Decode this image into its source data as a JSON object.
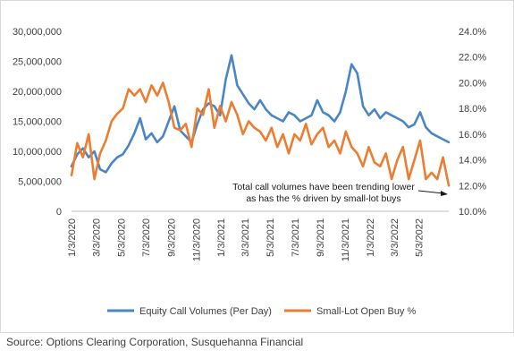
{
  "chart_data": {
    "type": "line",
    "title": "",
    "left_axis": {
      "ylim": [
        0,
        30000000
      ],
      "ticks": [
        0,
        5000000,
        10000000,
        15000000,
        20000000,
        25000000,
        30000000
      ],
      "tick_labels": [
        "0",
        "5,000,000",
        "10,000,000",
        "15,000,000",
        "20,000,000",
        "25,000,000",
        "30,000,000"
      ]
    },
    "right_axis": {
      "ylim": [
        10.0,
        24.0
      ],
      "ticks": [
        10,
        12,
        14,
        16,
        18,
        20,
        22,
        24
      ],
      "tick_labels": [
        "10.0%",
        "12.0%",
        "14.0%",
        "16.0%",
        "18.0%",
        "20.0%",
        "22.0%",
        "24.0%"
      ]
    },
    "x_axis": {
      "start": "2020-01-03",
      "end": "2022-07-15",
      "tick_dates": [
        "2020-01-03",
        "2020-03-03",
        "2020-05-03",
        "2020-07-03",
        "2020-09-03",
        "2020-11-03",
        "2021-01-03",
        "2021-03-03",
        "2021-05-03",
        "2021-07-03",
        "2021-09-03",
        "2021-11-03",
        "2022-01-03",
        "2022-03-03",
        "2022-05-03"
      ],
      "tick_labels": [
        "1/3/2020",
        "3/3/2020",
        "5/3/2020",
        "7/3/2020",
        "9/3/2020",
        "11/3/2020",
        "1/3/2021",
        "3/3/2021",
        "5/3/2021",
        "7/3/2021",
        "9/3/2021",
        "11/3/2021",
        "1/3/2022",
        "3/3/2022",
        "5/3/2022"
      ]
    },
    "series": [
      {
        "name": "Equity Call Volumes (Per Day)",
        "axis": "left",
        "color": "#4a86c5",
        "x": [
          "2020-01-03",
          "2020-01-17",
          "2020-01-31",
          "2020-02-14",
          "2020-02-28",
          "2020-03-13",
          "2020-03-27",
          "2020-04-10",
          "2020-04-24",
          "2020-05-08",
          "2020-05-22",
          "2020-06-05",
          "2020-06-19",
          "2020-07-03",
          "2020-07-17",
          "2020-07-31",
          "2020-08-14",
          "2020-08-28",
          "2020-09-11",
          "2020-09-25",
          "2020-10-09",
          "2020-10-23",
          "2020-11-06",
          "2020-11-20",
          "2020-12-04",
          "2020-12-18",
          "2021-01-01",
          "2021-01-15",
          "2021-01-29",
          "2021-02-12",
          "2021-02-26",
          "2021-03-12",
          "2021-03-26",
          "2021-04-09",
          "2021-04-23",
          "2021-05-07",
          "2021-05-21",
          "2021-06-04",
          "2021-06-18",
          "2021-07-02",
          "2021-07-16",
          "2021-07-30",
          "2021-08-13",
          "2021-08-27",
          "2021-09-10",
          "2021-09-24",
          "2021-10-08",
          "2021-10-22",
          "2021-11-05",
          "2021-11-19",
          "2021-12-03",
          "2021-12-17",
          "2021-12-31",
          "2022-01-14",
          "2022-01-28",
          "2022-02-11",
          "2022-02-25",
          "2022-03-11",
          "2022-03-25",
          "2022-04-08",
          "2022-04-22",
          "2022-05-06",
          "2022-05-20",
          "2022-06-03",
          "2022-06-17",
          "2022-07-01",
          "2022-07-15"
        ],
        "values": [
          7500000,
          9500000,
          10500000,
          9000000,
          10000000,
          7000000,
          6500000,
          8000000,
          9000000,
          9500000,
          11000000,
          13000000,
          15500000,
          12000000,
          13000000,
          11500000,
          12500000,
          15000000,
          17500000,
          13500000,
          12500000,
          11500000,
          14500000,
          17000000,
          18000000,
          17500000,
          16000000,
          22000000,
          26000000,
          21000000,
          19500000,
          18000000,
          17000000,
          18500000,
          17000000,
          16000000,
          15500000,
          15000000,
          16500000,
          16000000,
          15000000,
          15500000,
          16000000,
          18500000,
          16500000,
          16000000,
          15000000,
          16500000,
          20000000,
          24500000,
          23000000,
          17500000,
          16000000,
          17000000,
          15500000,
          16500000,
          16000000,
          15500000,
          15000000,
          14000000,
          14500000,
          16500000,
          14000000,
          13000000,
          12500000,
          12000000,
          11500000
        ]
      },
      {
        "name": "Small-Lot Open Buy %",
        "axis": "right",
        "color": "#ed7d31",
        "x": [
          "2020-01-03",
          "2020-01-17",
          "2020-01-31",
          "2020-02-14",
          "2020-02-28",
          "2020-03-13",
          "2020-03-27",
          "2020-04-10",
          "2020-04-24",
          "2020-05-08",
          "2020-05-22",
          "2020-06-05",
          "2020-06-19",
          "2020-07-03",
          "2020-07-17",
          "2020-07-31",
          "2020-08-14",
          "2020-08-28",
          "2020-09-11",
          "2020-09-25",
          "2020-10-09",
          "2020-10-23",
          "2020-11-06",
          "2020-11-20",
          "2020-12-04",
          "2020-12-18",
          "2021-01-01",
          "2021-01-15",
          "2021-01-29",
          "2021-02-12",
          "2021-02-26",
          "2021-03-12",
          "2021-03-26",
          "2021-04-09",
          "2021-04-23",
          "2021-05-07",
          "2021-05-21",
          "2021-06-04",
          "2021-06-18",
          "2021-07-02",
          "2021-07-16",
          "2021-07-30",
          "2021-08-13",
          "2021-08-27",
          "2021-09-10",
          "2021-09-24",
          "2021-10-08",
          "2021-10-22",
          "2021-11-05",
          "2021-11-19",
          "2021-12-03",
          "2021-12-17",
          "2021-12-31",
          "2022-01-14",
          "2022-01-28",
          "2022-02-11",
          "2022-02-25",
          "2022-03-11",
          "2022-03-25",
          "2022-04-08",
          "2022-04-22",
          "2022-05-06",
          "2022-05-20",
          "2022-06-03",
          "2022-06-17",
          "2022-07-01",
          "2022-07-15"
        ],
        "values": [
          12.8,
          15.3,
          14.2,
          16.0,
          12.5,
          14.5,
          15.5,
          17.0,
          17.6,
          18.0,
          19.5,
          19.0,
          19.5,
          18.5,
          19.8,
          19.0,
          20.0,
          18.5,
          16.5,
          16.3,
          16.8,
          15.0,
          18.0,
          17.5,
          19.5,
          16.5,
          18.2,
          17.0,
          18.5,
          17.5,
          16.0,
          17.0,
          16.5,
          16.2,
          15.5,
          16.5,
          15.0,
          16.0,
          14.5,
          16.0,
          15.5,
          16.8,
          15.2,
          16.0,
          16.5,
          15.0,
          15.5,
          14.5,
          16.2,
          15.0,
          14.5,
          13.5,
          15.0,
          13.8,
          13.5,
          14.5,
          12.5,
          14.0,
          15.0,
          12.5,
          14.0,
          15.5,
          12.5,
          13.0,
          12.5,
          14.2,
          12.0
        ]
      }
    ],
    "annotation": {
      "lines": [
        "Total call volumes have been trending lower",
        "as has the % driven by small-lot buys"
      ]
    },
    "legend_position": "bottom"
  },
  "source_text": "Source: Options Clearing Corporation, Susquehanna Financial"
}
